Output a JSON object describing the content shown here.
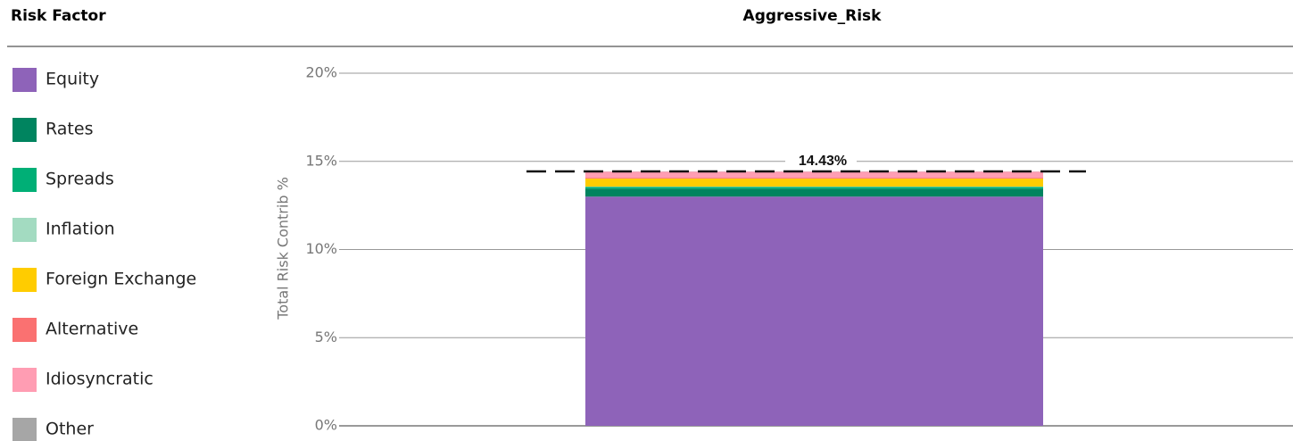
{
  "chart_data": {
    "type": "stacked_bar",
    "legend_title": "Risk Factor",
    "categories": [
      "Aggressive_Risk"
    ],
    "y_label": "Total Risk Contrib %",
    "ylim": [
      0,
      20
    ],
    "yticks": [
      {
        "value": 0,
        "label": "0%"
      },
      {
        "value": 5,
        "label": "5%"
      },
      {
        "value": 10,
        "label": "10%"
      },
      {
        "value": 15,
        "label": "15%"
      },
      {
        "value": 20,
        "label": "20%"
      }
    ],
    "grid": true,
    "legend": "left",
    "series": [
      {
        "name": "Equity",
        "color": "#8e63b9",
        "values": [
          13.0
        ]
      },
      {
        "name": "Rates",
        "color": "#00845f",
        "values": [
          0.45
        ]
      },
      {
        "name": "Spreads",
        "color": "#00af76",
        "values": [
          0.1
        ]
      },
      {
        "name": "Inflation",
        "color": "#a3dbc1",
        "values": [
          0.02
        ]
      },
      {
        "name": "Foreign Exchange",
        "color": "#ffcc00",
        "values": [
          0.45
        ]
      },
      {
        "name": "Alternative",
        "color": "#fa7171",
        "values": [
          0.05
        ]
      },
      {
        "name": "Idiosyncratic",
        "color": "#ff9db3",
        "values": [
          0.35
        ]
      },
      {
        "name": "Other",
        "color": "#a6a6a6",
        "values": [
          0.01
        ]
      }
    ],
    "total": {
      "values": [
        14.43
      ],
      "value_labels": [
        "14.43%"
      ]
    }
  }
}
